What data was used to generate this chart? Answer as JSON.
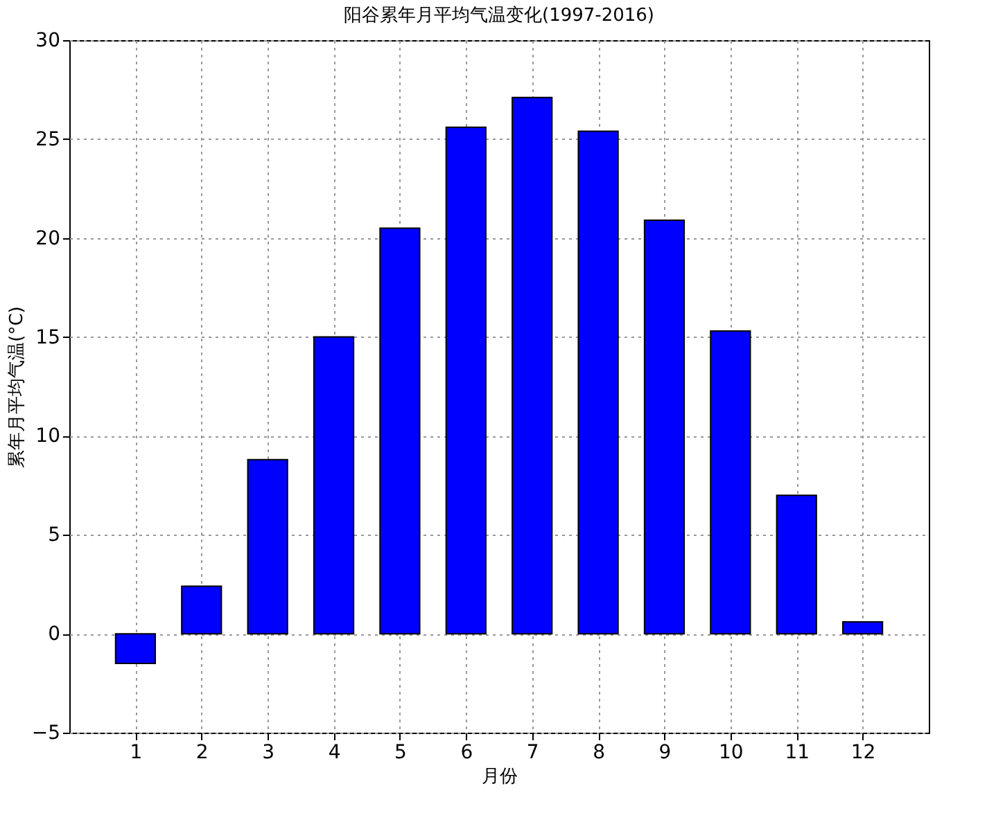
{
  "chart_data": {
    "type": "bar",
    "title": "阳谷累年月平均气温变化(1997-2016)",
    "xlabel": "月份",
    "ylabel": "累年月平均气温(°C)",
    "x": [
      1,
      2,
      3,
      4,
      5,
      6,
      7,
      8,
      9,
      10,
      11,
      12
    ],
    "values": [
      -1.5,
      2.4,
      8.8,
      15.0,
      20.5,
      25.6,
      27.1,
      25.4,
      20.9,
      15.3,
      7.0,
      0.6
    ],
    "color": "#0000ff",
    "xlim": [
      0,
      13
    ],
    "xticks": [
      1,
      2,
      3,
      4,
      5,
      6,
      7,
      8,
      9,
      10,
      11,
      12
    ],
    "ylim": [
      -5,
      30
    ],
    "yticks": [
      -5,
      0,
      5,
      10,
      15,
      20,
      25,
      30
    ],
    "grid": true
  }
}
